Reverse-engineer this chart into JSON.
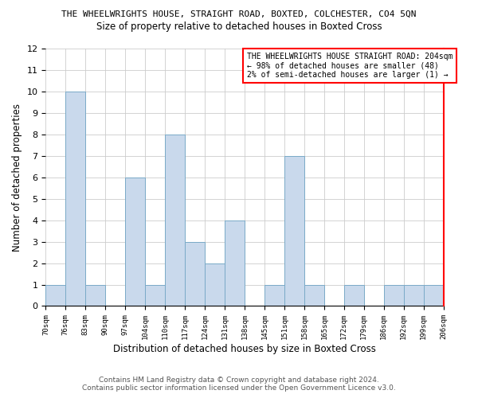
{
  "title": "THE WHEELWRIGHTS HOUSE, STRAIGHT ROAD, BOXTED, COLCHESTER, CO4 5QN",
  "subtitle": "Size of property relative to detached houses in Boxted Cross",
  "xlabel": "Distribution of detached houses by size in Boxted Cross",
  "ylabel": "Number of detached properties",
  "bin_labels": [
    "70sqm",
    "76sqm",
    "83sqm",
    "90sqm",
    "97sqm",
    "104sqm",
    "110sqm",
    "117sqm",
    "124sqm",
    "131sqm",
    "138sqm",
    "145sqm",
    "151sqm",
    "158sqm",
    "165sqm",
    "172sqm",
    "179sqm",
    "186sqm",
    "192sqm",
    "199sqm",
    "206sqm"
  ],
  "bar_heights": [
    1,
    10,
    1,
    0,
    6,
    1,
    8,
    3,
    2,
    4,
    0,
    1,
    7,
    1,
    0,
    1,
    0,
    1,
    1,
    1
  ],
  "bar_color": "#c9d9ec",
  "bar_edge_color": "#7aaac8",
  "ylim": [
    0,
    12
  ],
  "yticks": [
    0,
    1,
    2,
    3,
    4,
    5,
    6,
    7,
    8,
    9,
    10,
    11,
    12
  ],
  "annotation_title": "THE WHEELWRIGHTS HOUSE STRAIGHT ROAD: 204sqm",
  "annotation_line1": "← 98% of detached houses are smaller (48)",
  "annotation_line2": "2% of semi-detached houses are larger (1) →",
  "footer_line1": "Contains HM Land Registry data © Crown copyright and database right 2024.",
  "footer_line2": "Contains public sector information licensed under the Open Government Licence v3.0.",
  "background_color": "#ffffff",
  "grid_color": "#cccccc"
}
